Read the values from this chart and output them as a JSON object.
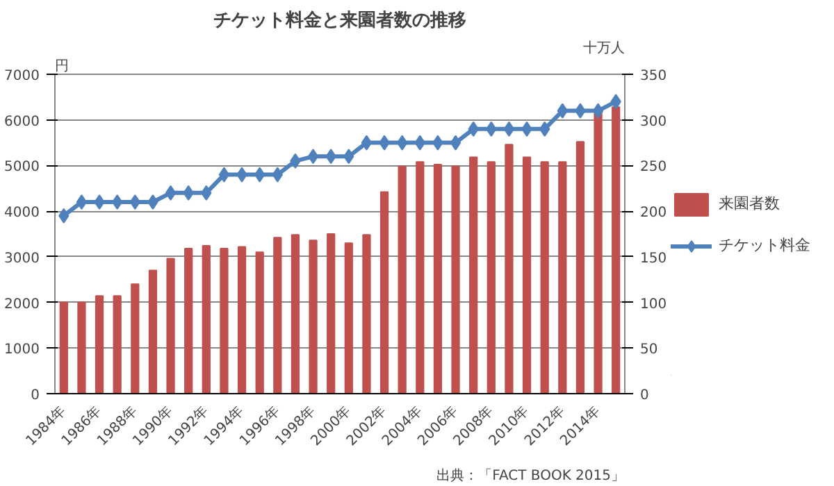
{
  "chart_data": {
    "type": "bar",
    "title": "チケット料金と来園者数の推移",
    "ylabel": "円",
    "y2label": "十万人",
    "categories": [
      "1984年",
      null,
      "1986年",
      null,
      "1988年",
      null,
      "1990年",
      null,
      "1992年",
      null,
      "1994年",
      null,
      "1996年",
      null,
      "1998年",
      null,
      "2000年",
      null,
      "2002年",
      null,
      "2004年",
      null,
      "2006年",
      null,
      "2008年",
      null,
      "2010年",
      null,
      "2012年",
      null,
      "2014年",
      null
    ],
    "series": [
      {
        "name": "来園者数",
        "axis": "y2",
        "color": "#c0504d",
        "values": [
          100,
          100,
          107,
          107,
          120,
          135,
          148,
          159,
          162,
          159,
          161,
          155,
          171,
          174,
          168,
          175,
          165,
          174,
          221,
          249,
          254,
          251,
          249,
          259,
          254,
          273,
          259,
          254,
          254,
          276,
          309,
          314
        ]
      },
      {
        "name": "チケット料金",
        "type": "line",
        "color": "#4f81bd",
        "marker": "diamond",
        "values": [
          3900,
          4200,
          4200,
          4200,
          4200,
          4200,
          4400,
          4400,
          4400,
          4800,
          4800,
          4800,
          4800,
          5100,
          5200,
          5200,
          5200,
          5500,
          5500,
          5500,
          5500,
          5500,
          5500,
          5800,
          5800,
          5800,
          5800,
          5800,
          6200,
          6200,
          6200,
          6400
        ]
      }
    ],
    "ylim": [
      0,
      7000
    ],
    "yticks": [
      0,
      1000,
      2000,
      3000,
      4000,
      5000,
      6000,
      7000
    ],
    "y2lim": [
      0,
      350
    ],
    "y2ticks": [
      0,
      50,
      100,
      150,
      200,
      250,
      300,
      350
    ],
    "grid": "y",
    "legend": "right",
    "annotations": [
      "出典：「FACT BOOK 2015」"
    ]
  }
}
